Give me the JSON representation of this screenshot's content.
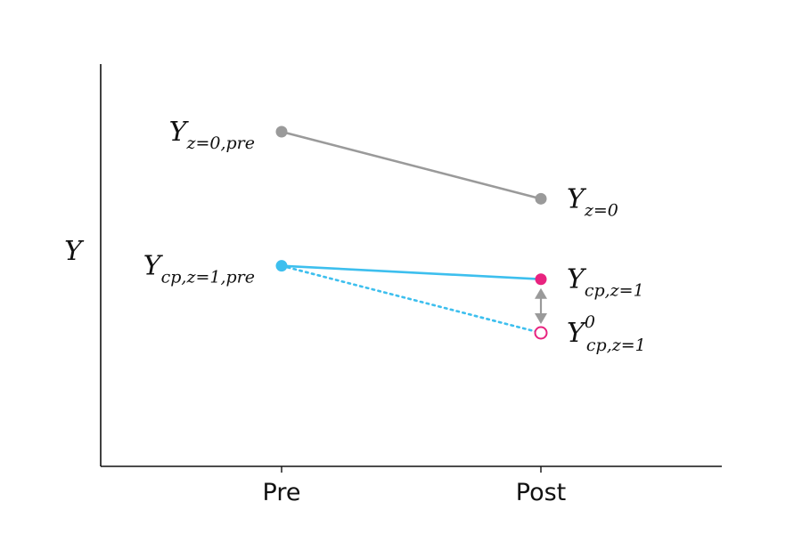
{
  "chart_data": {
    "type": "line",
    "categories": [
      "Pre",
      "Post"
    ],
    "ylabel": {
      "main": "Y",
      "sub": ""
    },
    "ylim": [
      0,
      10
    ],
    "grid": false,
    "series": [
      {
        "key": "control",
        "values": [
          10,
          8
        ],
        "style": "solid",
        "color": "#9a9a9a",
        "marker_colors": [
          "#9a9a9a",
          "#9a9a9a"
        ],
        "marker_fill": [
          "filled",
          "filled"
        ],
        "labels": [
          {
            "main": "Y",
            "sub": "z=0,pre",
            "sup": ""
          },
          {
            "main": "Y",
            "sub": "z=0",
            "sup": ""
          }
        ]
      },
      {
        "key": "treated",
        "values": [
          6,
          5.6
        ],
        "style": "solid",
        "color": "#3dbfee",
        "marker_colors": [
          "#3dbfee",
          "#e8237f"
        ],
        "marker_fill": [
          "filled",
          "filled"
        ],
        "labels": [
          {
            "main": "Y",
            "sub": "cp,z=1,pre",
            "sup": ""
          },
          {
            "main": "Y",
            "sub": "cp,z=1",
            "sup": ""
          }
        ]
      },
      {
        "key": "counterfactual",
        "values": [
          6,
          4
        ],
        "style": "dotted",
        "color": "#3dbfee",
        "marker_colors": [
          null,
          "#e8237f"
        ],
        "marker_fill": [
          null,
          "hollow"
        ],
        "labels": [
          null,
          {
            "main": "Y",
            "sub": "cp,z=1",
            "sup": "0"
          }
        ]
      }
    ],
    "annotations": [
      {
        "type": "double-arrow",
        "x": "Post",
        "from": 5.6,
        "to": 4,
        "color": "#9a9a9a"
      }
    ]
  }
}
